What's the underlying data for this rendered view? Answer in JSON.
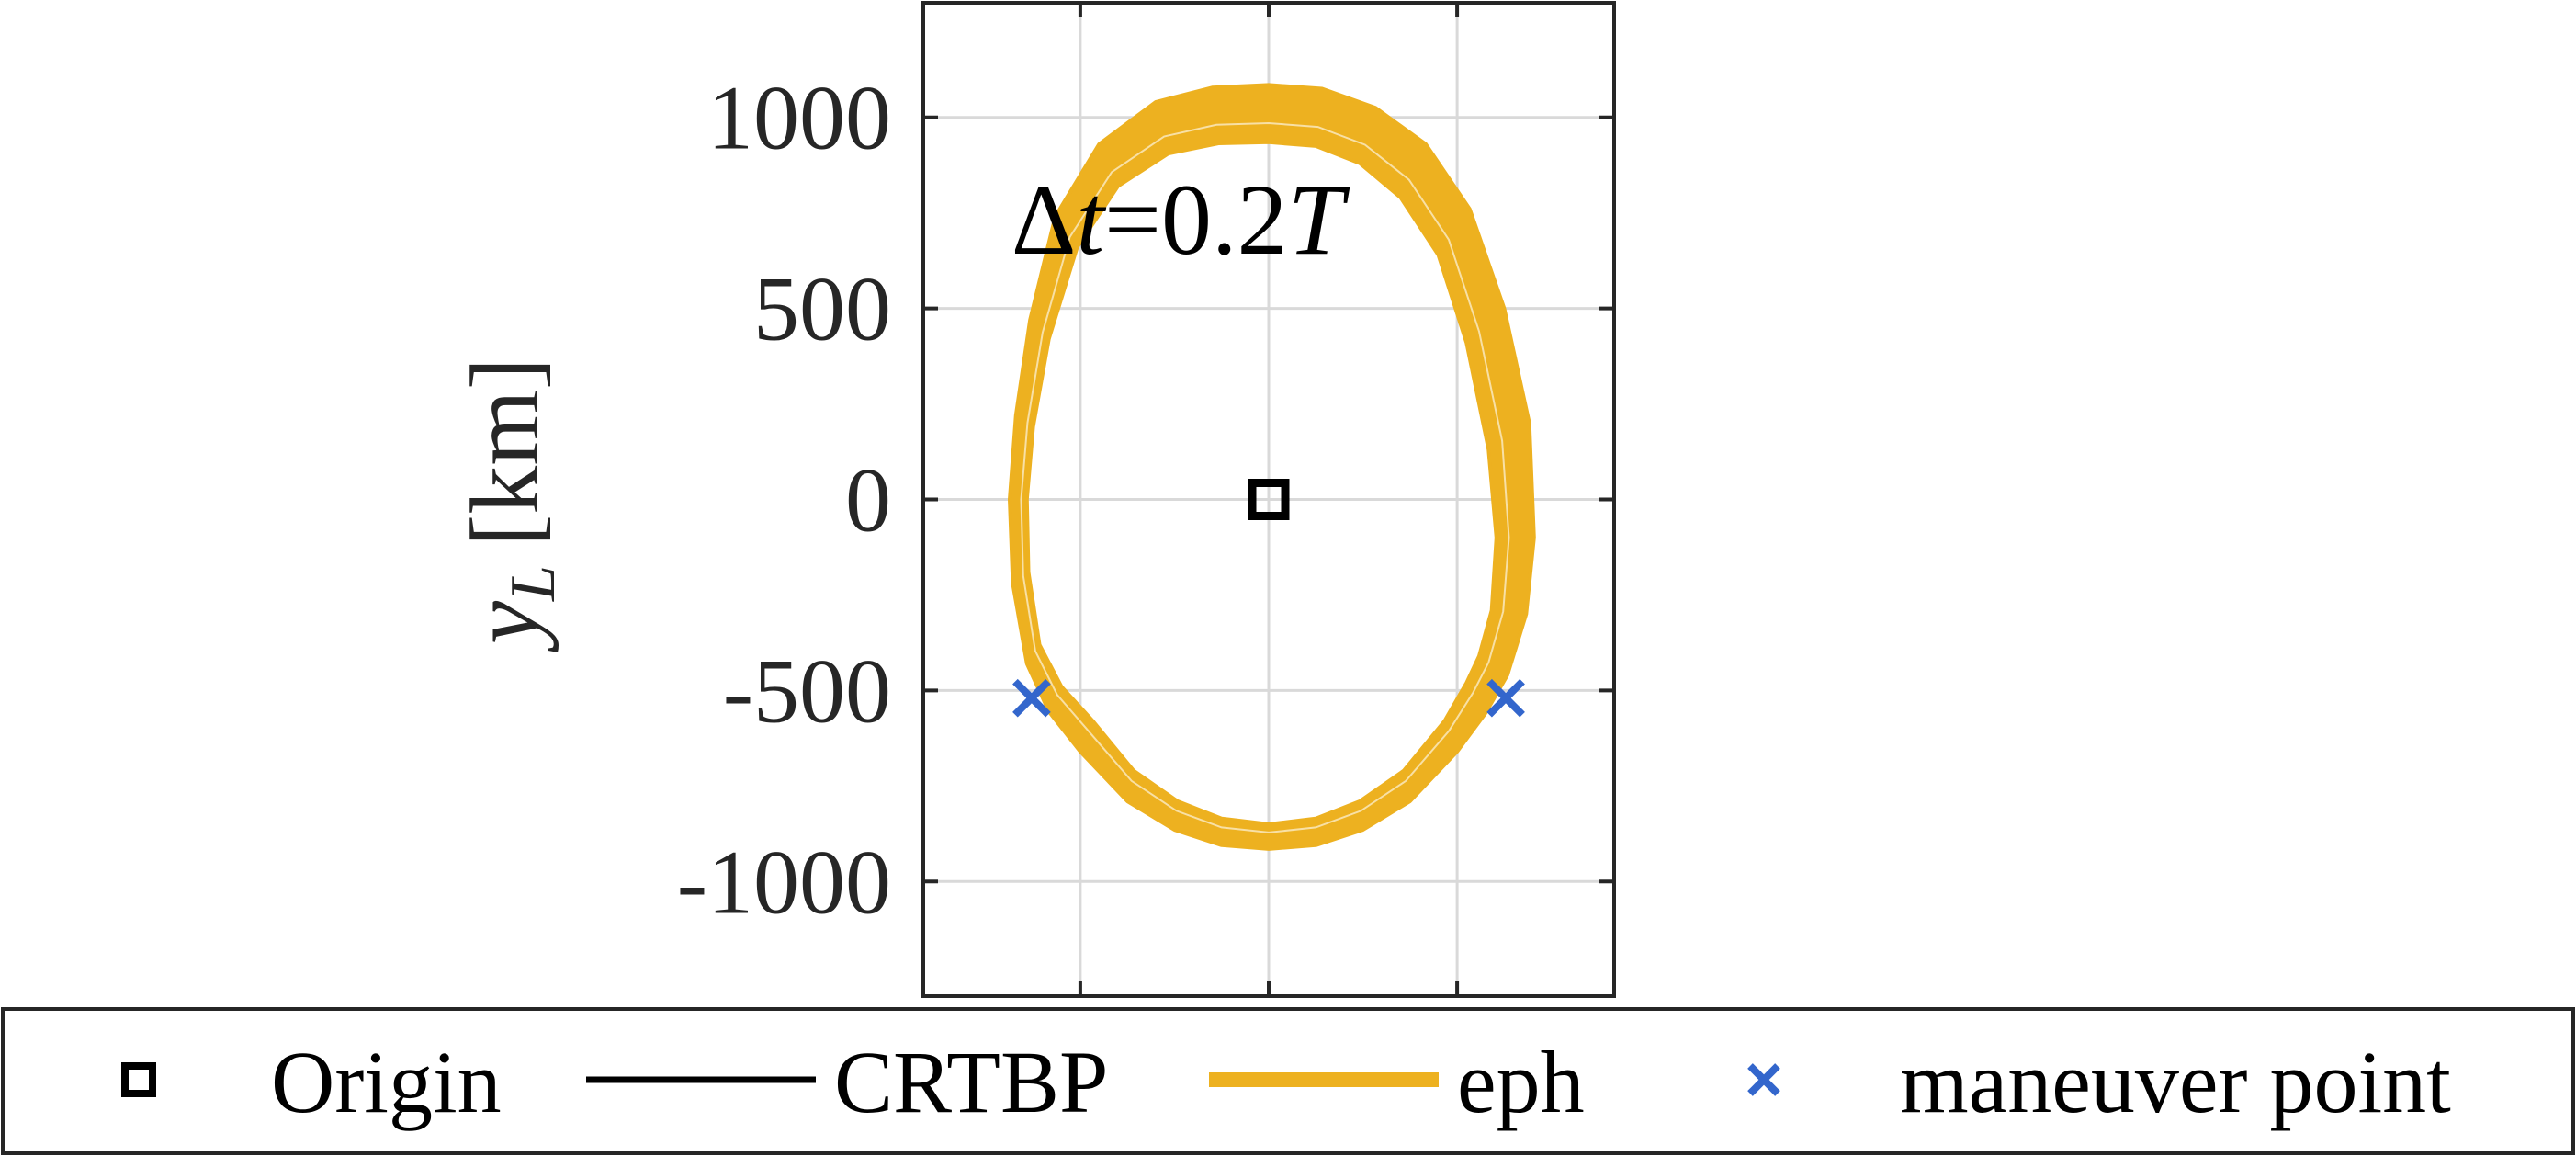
{
  "chart_data": {
    "type": "line",
    "title": "",
    "xlabel": "",
    "ylabel": "y",
    "ylabel_subscript": "L",
    "ylabel_unit": "[km]",
    "xlim": [
      -1100,
      1100
    ],
    "ylim": [
      -1300,
      1300
    ],
    "x_gridlines": [
      -600,
      0,
      600
    ],
    "y_ticks": [
      1000,
      500,
      0,
      -500,
      -1000
    ],
    "y_tick_labels": [
      "1000",
      "500",
      "0",
      "-500",
      "-1000"
    ],
    "grid": true,
    "annotation": {
      "delta": "Δ",
      "variable": "t",
      "value": "=0.2",
      "unit": "T",
      "x": -820,
      "y": 740
    },
    "series": [
      {
        "name": "Origin",
        "kind": "marker",
        "marker": "square",
        "color": "#000000",
        "points": [
          [
            0,
            0
          ]
        ]
      },
      {
        "name": "CRTBP",
        "kind": "line",
        "color": "#000000",
        "points": [
          [
            0,
            1000
          ],
          [
            150,
            990
          ],
          [
            300,
            950
          ],
          [
            450,
            860
          ],
          [
            580,
            700
          ],
          [
            680,
            450
          ],
          [
            750,
            150
          ],
          [
            780,
            -100
          ],
          [
            760,
            -300
          ],
          [
            720,
            -430
          ],
          [
            680,
            -510
          ],
          [
            600,
            -620
          ],
          [
            450,
            -750
          ],
          [
            300,
            -830
          ],
          [
            150,
            -870
          ],
          [
            0,
            -885
          ],
          [
            -150,
            -870
          ],
          [
            -300,
            -830
          ],
          [
            -450,
            -750
          ],
          [
            -600,
            -620
          ],
          [
            -700,
            -520
          ],
          [
            -760,
            -400
          ],
          [
            -795,
            -200
          ],
          [
            -800,
            0
          ],
          [
            -780,
            200
          ],
          [
            -730,
            450
          ],
          [
            -640,
            700
          ],
          [
            -500,
            870
          ],
          [
            -330,
            960
          ],
          [
            -170,
            995
          ],
          [
            0,
            1000
          ]
        ]
      },
      {
        "name": "eph",
        "kind": "band",
        "color": "#EDB120",
        "outer": [
          [
            0,
            1085
          ],
          [
            170,
            1075
          ],
          [
            340,
            1025
          ],
          [
            500,
            930
          ],
          [
            640,
            760
          ],
          [
            750,
            500
          ],
          [
            830,
            200
          ],
          [
            845,
            -100
          ],
          [
            820,
            -300
          ],
          [
            760,
            -460
          ],
          [
            690,
            -560
          ],
          [
            600,
            -660
          ],
          [
            450,
            -790
          ],
          [
            300,
            -865
          ],
          [
            150,
            -905
          ],
          [
            0,
            -915
          ],
          [
            -150,
            -905
          ],
          [
            -300,
            -865
          ],
          [
            -450,
            -790
          ],
          [
            -600,
            -660
          ],
          [
            -700,
            -555
          ],
          [
            -770,
            -430
          ],
          [
            -815,
            -220
          ],
          [
            -825,
            0
          ],
          [
            -805,
            220
          ],
          [
            -760,
            470
          ],
          [
            -680,
            740
          ],
          [
            -540,
            930
          ],
          [
            -360,
            1040
          ],
          [
            -180,
            1078
          ],
          [
            0,
            1085
          ]
        ],
        "inner": [
          [
            0,
            935
          ],
          [
            150,
            925
          ],
          [
            290,
            880
          ],
          [
            420,
            790
          ],
          [
            540,
            640
          ],
          [
            630,
            410
          ],
          [
            700,
            130
          ],
          [
            725,
            -100
          ],
          [
            710,
            -290
          ],
          [
            670,
            -410
          ],
          [
            630,
            -480
          ],
          [
            560,
            -580
          ],
          [
            430,
            -710
          ],
          [
            290,
            -790
          ],
          [
            150,
            -835
          ],
          [
            0,
            -850
          ],
          [
            -150,
            -835
          ],
          [
            -290,
            -790
          ],
          [
            -430,
            -710
          ],
          [
            -560,
            -580
          ],
          [
            -660,
            -490
          ],
          [
            -730,
            -380
          ],
          [
            -765,
            -190
          ],
          [
            -770,
            0
          ],
          [
            -750,
            190
          ],
          [
            -700,
            420
          ],
          [
            -610,
            660
          ],
          [
            -480,
            820
          ],
          [
            -320,
            905
          ],
          [
            -160,
            932
          ],
          [
            0,
            935
          ]
        ]
      },
      {
        "name": "maneuver point",
        "kind": "marker",
        "marker": "x",
        "color": "#3366CC",
        "points": [
          [
            -755,
            -520
          ],
          [
            755,
            -520
          ]
        ]
      }
    ],
    "legend": {
      "location": "bottom",
      "orientation": "horizontal",
      "entries": [
        "Origin",
        "CRTBP",
        "eph",
        "maneuver point"
      ]
    }
  }
}
